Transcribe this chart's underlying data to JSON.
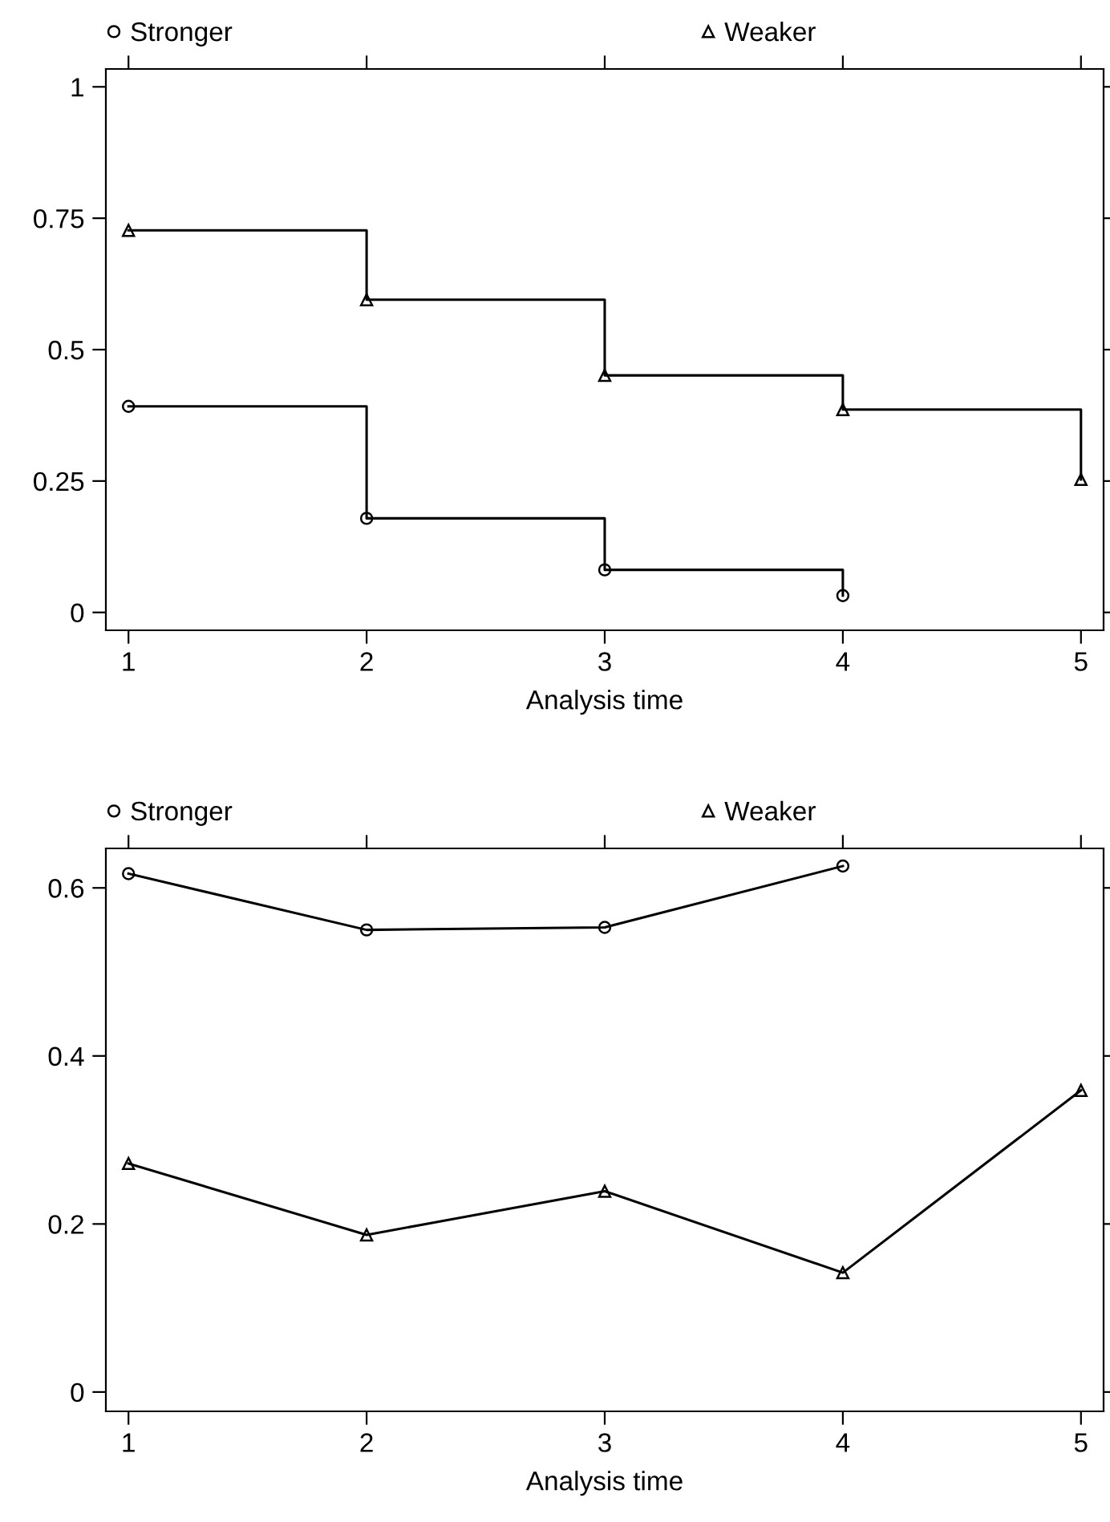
{
  "chart_data": [
    {
      "type": "step",
      "xlabel": "Analysis time",
      "xlim": [
        0.905,
        5.095
      ],
      "xticks": [
        1,
        2,
        3,
        4,
        5
      ],
      "ylim": [
        -0.034,
        1.034
      ],
      "yticks": [
        0,
        0.25,
        0.5,
        0.75,
        1
      ],
      "grid": false,
      "legend": "top",
      "line_style": "solid",
      "series": [
        {
          "name": "Stronger",
          "color": "#000000",
          "marker": "circle",
          "x": [
            1,
            2,
            3,
            4
          ],
          "values": [
            0.392,
            0.179,
            0.081,
            0.032
          ]
        },
        {
          "name": "Weaker",
          "color": "#000000",
          "marker": "triangle",
          "x": [
            1,
            2,
            3,
            4,
            5
          ],
          "values": [
            0.727,
            0.595,
            0.451,
            0.386,
            0.253
          ]
        }
      ]
    },
    {
      "type": "line",
      "xlabel": "Analysis time",
      "xlim": [
        0.905,
        5.095
      ],
      "xticks": [
        1,
        2,
        3,
        4,
        5
      ],
      "ylim": [
        -0.023,
        0.647
      ],
      "yticks": [
        0,
        0.2,
        0.4,
        0.6
      ],
      "grid": false,
      "legend": "top",
      "line_style": "solid",
      "series": [
        {
          "name": "Stronger",
          "color": "#000000",
          "marker": "circle",
          "x": [
            1,
            2,
            3,
            4
          ],
          "values": [
            0.617,
            0.55,
            0.553,
            0.626
          ]
        },
        {
          "name": "Weaker",
          "color": "#000000",
          "marker": "triangle",
          "x": [
            1,
            2,
            3,
            4,
            5
          ],
          "values": [
            0.272,
            0.187,
            0.239,
            0.142,
            0.359
          ]
        }
      ]
    }
  ]
}
